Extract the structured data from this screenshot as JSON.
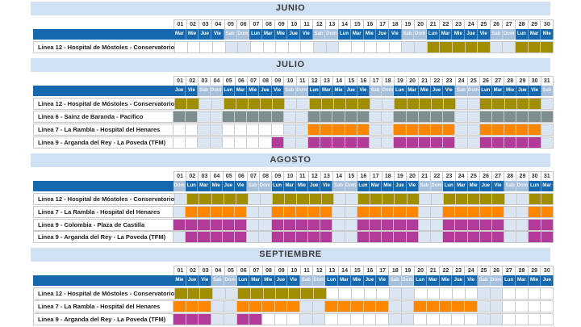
{
  "colors": {
    "band_bg": "#CFE1F3",
    "band_text": "#3B3B3B",
    "header_blue": "#1568AD",
    "header_weekend_bg": "#A6BFDB",
    "weekend_cell_bg": "#DCE6F2",
    "grid_border": "#C9C9C9",
    "closure_colors": {
      "olive": "#A08E00",
      "gray": "#7F8E8E",
      "orange": "#FF8600",
      "magenta": "#B23A98"
    }
  },
  "chart_data": {
    "type": "table",
    "title": "Metro line closures calendar (Gantt by month)",
    "weekday_names": [
      "Lun",
      "Mar",
      "Mie",
      "Jue",
      "Vie",
      "Sab",
      "Dom"
    ],
    "months": [
      {
        "title": "JUNIO",
        "days": 30,
        "first_weekday": "Mar",
        "rows": [
          {
            "label": "Linea 12 - Hospital de Móstoles - Conservatorio",
            "color": "olive",
            "closed": [
              [
                21,
                25
              ],
              [
                28,
                30
              ]
            ]
          }
        ]
      },
      {
        "title": "JULIO",
        "days": 31,
        "first_weekday": "Jue",
        "rows": [
          {
            "label": "Linea 12 - Hospital de Móstoles - Conservatorio",
            "color": "olive",
            "closed": [
              [
                1,
                2
              ],
              [
                5,
                9
              ],
              [
                12,
                16
              ],
              [
                19,
                23
              ],
              [
                26,
                30
              ]
            ]
          },
          {
            "label": "Linea 6 - Sainz de Baranda - Pacífico",
            "color": "gray",
            "closed": [
              [
                1,
                2
              ],
              [
                5,
                9
              ],
              [
                12,
                16
              ],
              [
                19,
                23
              ],
              [
                26,
                31
              ]
            ]
          },
          {
            "label": "Linea 7 - La Rambla - Hospital del Henares",
            "color": "orange",
            "closed": [
              [
                12,
                16
              ],
              [
                19,
                23
              ],
              [
                26,
                30
              ]
            ]
          },
          {
            "label": "Linea 9 - Arganda del Rey - La Poveda (TFM)",
            "color": "magenta",
            "closed": [
              [
                9,
                9
              ],
              [
                12,
                16
              ],
              [
                19,
                23
              ],
              [
                26,
                30
              ]
            ]
          }
        ]
      },
      {
        "title": "AGOSTO",
        "days": 31,
        "first_weekday": "Dom",
        "rows": [
          {
            "label": "Linea 12 - Hospital de Móstoles - Conservatorio",
            "color": "olive",
            "closed": [
              [
                2,
                6
              ],
              [
                9,
                13
              ],
              [
                16,
                20
              ],
              [
                23,
                27
              ],
              [
                30,
                31
              ]
            ]
          },
          {
            "label": "Linea 7 - La Rambla - Hospital del Henares",
            "color": "orange",
            "closed": [
              [
                2,
                6
              ],
              [
                9,
                13
              ],
              [
                16,
                20
              ],
              [
                23,
                27
              ],
              [
                30,
                31
              ]
            ]
          },
          {
            "label": "Linea 9 - Colombia - Plaza de Castilla",
            "color": "magenta",
            "closed": [
              [
                1,
                6
              ],
              [
                9,
                13
              ],
              [
                16,
                20
              ],
              [
                23,
                27
              ],
              [
                30,
                31
              ]
            ]
          },
          {
            "label": "Linea 9 - Arganda del Rey - La Poveda (TFM)",
            "color": "magenta",
            "attached": true,
            "closed": [
              [
                2,
                6
              ],
              [
                9,
                13
              ],
              [
                16,
                20
              ],
              [
                23,
                27
              ],
              [
                30,
                31
              ]
            ]
          }
        ]
      },
      {
        "title": "SEPTIEMBRE",
        "days": 30,
        "first_weekday": "Mie",
        "rows": [
          {
            "label": "Linea 12 - Hospital de Móstoles - Conservatorio",
            "color": "olive",
            "closed": [
              [
                1,
                3
              ],
              [
                6,
                12
              ]
            ]
          },
          {
            "label": "Linea 7 - La Rambla - Hospital del Henares",
            "color": "orange",
            "closed": [
              [
                1,
                3
              ],
              [
                6,
                10
              ],
              [
                13,
                17
              ],
              [
                20,
                24
              ]
            ]
          },
          {
            "label": "Linea 9 - Arganda del Rey - La Poveda (TFM)",
            "color": "magenta",
            "closed": [
              [
                1,
                3
              ],
              [
                6,
                7
              ]
            ]
          }
        ]
      }
    ]
  }
}
